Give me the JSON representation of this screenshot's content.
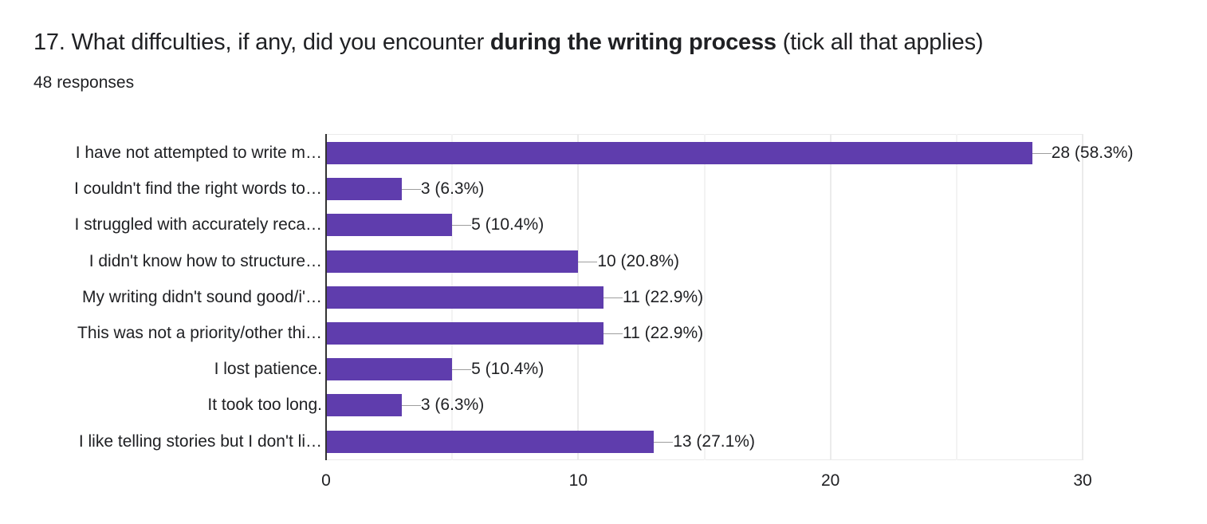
{
  "question": {
    "number": "17.",
    "text_before": "What diffculties, if any, did you encounter ",
    "text_bold": "during the writing process",
    "text_after": " (tick all that applies)",
    "responses_label": "48 responses"
  },
  "colors": {
    "bar": "#5f3dad",
    "gridline": "#ebebeb",
    "axis": "#333333",
    "text": "#202124"
  },
  "chart_data": {
    "type": "bar",
    "orientation": "horizontal",
    "title": "17. What diffculties, if any, did you encounter during the writing process (tick all that applies)",
    "subtitle": "48 responses",
    "xlabel": "",
    "ylabel": "",
    "xlim": [
      0,
      30
    ],
    "x_ticks": [
      "0",
      "10",
      "20",
      "30"
    ],
    "grid": true,
    "legend": null,
    "categories": [
      "I have not attempted to write m…",
      "I couldn't find the right words to…",
      "I struggled with accurately reca…",
      "I didn't know how to structure…",
      "My writing didn't sound good/i'…",
      "This was not a priority/other thi…",
      "I lost patience.",
      "It took too long.",
      "I like telling stories but I don't li…"
    ],
    "values": [
      28,
      3,
      5,
      10,
      11,
      11,
      5,
      3,
      13
    ],
    "percentages": [
      58.3,
      6.3,
      10.4,
      20.8,
      22.9,
      22.9,
      10.4,
      6.3,
      27.1
    ],
    "labels": [
      "28 (58.3%)",
      "3 (6.3%)",
      "5 (10.4%)",
      "10 (20.8%)",
      "11 (22.9%)",
      "11 (22.9%)",
      "5 (10.4%)",
      "3 (6.3%)",
      "13 (27.1%)"
    ]
  }
}
